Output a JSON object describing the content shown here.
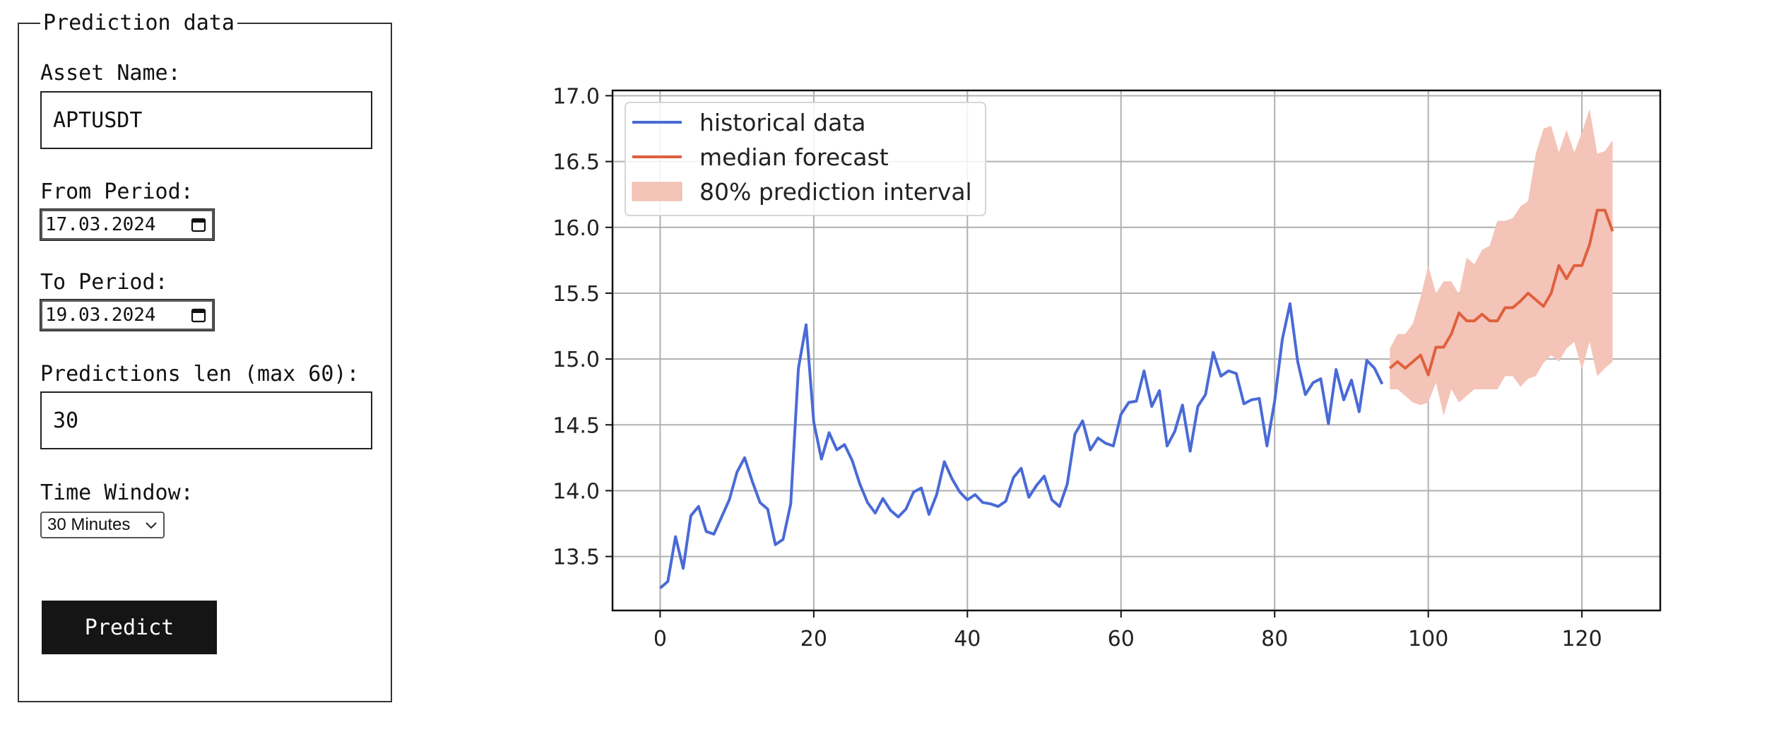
{
  "form": {
    "legend": "Prediction data",
    "asset_label": "Asset Name:",
    "asset_value": "APTUSDT",
    "from_label": "From Period:",
    "from_value": "17.03.2024",
    "to_label": "To Period:",
    "to_value": "19.03.2024",
    "len_label": "Predictions len (max 60):",
    "len_value": "30",
    "window_label": "Time Window:",
    "window_value": "30 Minutes",
    "predict_label": "Predict"
  },
  "icons": {
    "date_picker": "calendar-icon",
    "select": "chevron-down-icon"
  },
  "chart_data": {
    "type": "line",
    "title": "",
    "xlabel": "",
    "ylabel": "",
    "xlim": [
      -6.2,
      130.2
    ],
    "ylim": [
      13.09,
      17.04
    ],
    "xticks": [
      0,
      20,
      40,
      60,
      80,
      100,
      120
    ],
    "yticks": [
      13.5,
      14.0,
      14.5,
      15.0,
      15.5,
      16.0,
      16.5,
      17.0
    ],
    "ytick_labels": [
      "13.5",
      "14.0",
      "14.5",
      "15.0",
      "15.5",
      "16.0",
      "16.5",
      "17.0"
    ],
    "grid": true,
    "legend_position": "upper-left",
    "series": [
      {
        "name": "historical data",
        "color": "#4a6ad6",
        "x_start": 0,
        "values": [
          13.26,
          13.31,
          13.65,
          13.41,
          13.81,
          13.88,
          13.69,
          13.67,
          13.8,
          13.93,
          14.14,
          14.25,
          14.07,
          13.91,
          13.86,
          13.59,
          13.63,
          13.9,
          14.93,
          15.26,
          14.52,
          14.24,
          14.44,
          14.31,
          14.35,
          14.23,
          14.05,
          13.91,
          13.83,
          13.94,
          13.85,
          13.8,
          13.86,
          13.99,
          14.02,
          13.82,
          13.97,
          14.22,
          14.09,
          13.99,
          13.93,
          13.97,
          13.91,
          13.9,
          13.88,
          13.92,
          14.1,
          14.17,
          13.95,
          14.04,
          14.11,
          13.93,
          13.88,
          14.05,
          14.43,
          14.53,
          14.31,
          14.4,
          14.36,
          14.34,
          14.58,
          14.67,
          14.68,
          14.91,
          14.64,
          14.76,
          14.34,
          14.45,
          14.65,
          14.3,
          14.64,
          14.73,
          15.05,
          14.87,
          14.91,
          14.89,
          14.66,
          14.69,
          14.7,
          14.34,
          14.68,
          15.15,
          15.42,
          14.98,
          14.73,
          14.82,
          14.85,
          14.51,
          14.92,
          14.69,
          14.84,
          14.6,
          14.99,
          14.93,
          14.81
        ]
      },
      {
        "name": "median forecast",
        "color": "#e0603e",
        "x_start": 95,
        "values": [
          14.93,
          14.98,
          14.93,
          14.98,
          15.03,
          14.88,
          15.09,
          15.09,
          15.19,
          15.35,
          15.29,
          15.29,
          15.34,
          15.29,
          15.29,
          15.39,
          15.39,
          15.44,
          15.5,
          15.45,
          15.4,
          15.5,
          15.71,
          15.61,
          15.71,
          15.71,
          15.87,
          16.13,
          16.13,
          15.97
        ]
      }
    ],
    "interval": {
      "name": "80% prediction interval",
      "color": "#f4c4b8",
      "x_start": 95,
      "lower": [
        14.77,
        14.77,
        14.72,
        14.67,
        14.65,
        14.67,
        14.82,
        14.57,
        14.77,
        14.67,
        14.72,
        14.77,
        14.77,
        14.77,
        14.77,
        14.87,
        14.87,
        14.79,
        14.85,
        14.87,
        14.97,
        15.03,
        14.98,
        15.08,
        15.13,
        14.92,
        15.13,
        14.87,
        14.93,
        14.98
      ],
      "upper": [
        15.08,
        15.19,
        15.19,
        15.27,
        15.47,
        15.71,
        15.5,
        15.59,
        15.59,
        15.49,
        15.77,
        15.72,
        15.83,
        15.86,
        16.05,
        16.05,
        16.07,
        16.16,
        16.2,
        16.56,
        16.75,
        16.77,
        16.57,
        16.74,
        16.57,
        16.72,
        16.9,
        16.56,
        16.58,
        16.66
      ]
    }
  }
}
